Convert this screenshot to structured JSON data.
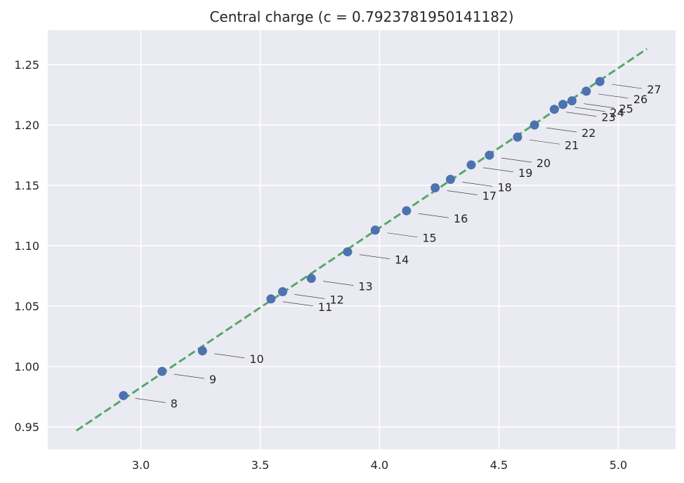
{
  "chart_data": {
    "type": "scatter",
    "title": "Central charge (c = 0.7923781950141182)",
    "xlabel": "",
    "ylabel": "",
    "xlim": [
      2.61,
      5.24
    ],
    "ylim": [
      0.9315,
      1.2785
    ],
    "xticks": [
      3.0,
      3.5,
      4.0,
      4.5,
      5.0
    ],
    "xtick_labels": [
      "3.0",
      "3.5",
      "4.0",
      "4.5",
      "5.0"
    ],
    "yticks": [
      0.95,
      1.0,
      1.05,
      1.1,
      1.15,
      1.2,
      1.25
    ],
    "ytick_labels": [
      "0.95",
      "1.00",
      "1.05",
      "1.10",
      "1.15",
      "1.20",
      "1.25"
    ],
    "grid": true,
    "background": "#EAEAF2",
    "grid_color": "#FFFFFF",
    "point_color": "#4C72B0",
    "fit_color": "#55A868",
    "points": [
      {
        "label": "8",
        "x": 2.927,
        "y": 0.976
      },
      {
        "label": "9",
        "x": 3.089,
        "y": 0.996
      },
      {
        "label": "10",
        "x": 3.258,
        "y": 1.013
      },
      {
        "label": "11",
        "x": 3.545,
        "y": 1.056
      },
      {
        "label": "12",
        "x": 3.594,
        "y": 1.062
      },
      {
        "label": "13",
        "x": 3.714,
        "y": 1.073
      },
      {
        "label": "14",
        "x": 3.866,
        "y": 1.095
      },
      {
        "label": "15",
        "x": 3.982,
        "y": 1.113
      },
      {
        "label": "16",
        "x": 4.113,
        "y": 1.129
      },
      {
        "label": "17",
        "x": 4.233,
        "y": 1.148
      },
      {
        "label": "18",
        "x": 4.297,
        "y": 1.155
      },
      {
        "label": "19",
        "x": 4.384,
        "y": 1.167
      },
      {
        "label": "20",
        "x": 4.46,
        "y": 1.175
      },
      {
        "label": "21",
        "x": 4.578,
        "y": 1.19
      },
      {
        "label": "22",
        "x": 4.649,
        "y": 1.2
      },
      {
        "label": "23",
        "x": 4.732,
        "y": 1.213
      },
      {
        "label": "24",
        "x": 4.768,
        "y": 1.217
      },
      {
        "label": "25",
        "x": 4.806,
        "y": 1.22
      },
      {
        "label": "26",
        "x": 4.866,
        "y": 1.228
      },
      {
        "label": "27",
        "x": 4.923,
        "y": 1.236
      }
    ],
    "fit_line": {
      "x": [
        2.73,
        5.12
      ],
      "y": [
        0.947,
        1.263
      ]
    }
  }
}
